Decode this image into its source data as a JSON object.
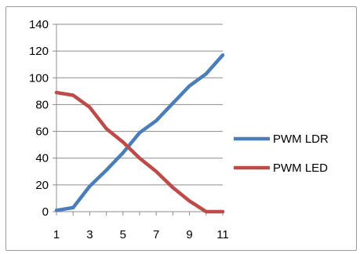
{
  "chart_data": {
    "type": "line",
    "title": "",
    "xlabel": "",
    "ylabel": "",
    "x": [
      1,
      2,
      3,
      4,
      5,
      6,
      7,
      8,
      9,
      10,
      11
    ],
    "x_tick_labels": [
      "1",
      "3",
      "5",
      "7",
      "9",
      "11"
    ],
    "x_tick_values": [
      1,
      3,
      5,
      7,
      9,
      11
    ],
    "y_tick_labels": [
      "0",
      "20",
      "40",
      "60",
      "80",
      "100",
      "120",
      "140"
    ],
    "y_tick_values": [
      0,
      20,
      40,
      60,
      80,
      100,
      120,
      140
    ],
    "ylim": [
      0,
      140
    ],
    "xlim": [
      1,
      11
    ],
    "grid": "horizontal",
    "legend_position": "right",
    "series": [
      {
        "name": "PWM LDR",
        "color": "#4a7ebb",
        "values": [
          1,
          3,
          19,
          31,
          44,
          59,
          68,
          81,
          94,
          103,
          117
        ]
      },
      {
        "name": "PWM LED",
        "color": "#be4b48",
        "values": [
          89,
          87,
          78,
          62,
          52,
          40,
          30,
          18,
          8,
          0,
          0
        ]
      }
    ]
  }
}
